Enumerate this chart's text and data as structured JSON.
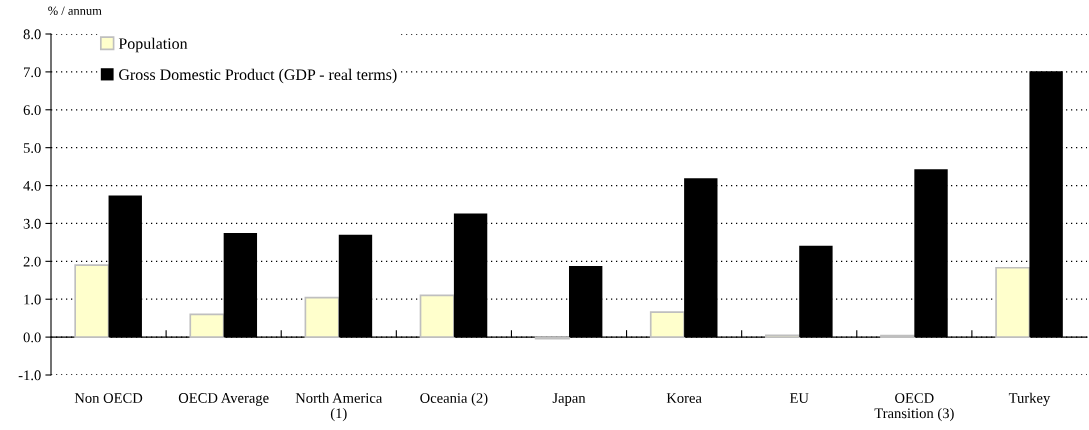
{
  "chart_data": {
    "type": "bar",
    "ylabel": "% / annum",
    "categories": [
      "Non OECD",
      "OECD Average",
      "North America\n(1)",
      "Oceania (2)",
      "Japan",
      "Korea",
      "EU",
      "OECD\nTransition (3)",
      "Turkey"
    ],
    "series": [
      {
        "name": "Population",
        "color": "#ffffcc",
        "values": [
          1.9,
          0.6,
          1.04,
          1.1,
          -0.04,
          0.66,
          0.05,
          0.04,
          1.83
        ]
      },
      {
        "name": "Gross Domestic Product (GDP - real terms)",
        "color": "#000000",
        "values": [
          3.74,
          2.75,
          2.7,
          3.26,
          1.88,
          4.19,
          2.41,
          4.43,
          7.02
        ]
      }
    ],
    "ylim": [
      -1,
      8
    ],
    "yticks": [
      {
        "value": -1,
        "label": "-1.0"
      },
      {
        "value": 0,
        "label": "0.0"
      },
      {
        "value": 1,
        "label": "1.0"
      },
      {
        "value": 2,
        "label": "2.0"
      },
      {
        "value": 3,
        "label": "3.0"
      },
      {
        "value": 4,
        "label": "4.0"
      },
      {
        "value": 5,
        "label": "5.0"
      },
      {
        "value": 6,
        "label": "6.0"
      },
      {
        "value": 7,
        "label": "7.0"
      },
      {
        "value": 8,
        "label": "8.0"
      }
    ],
    "grid": "y",
    "legend": "top left"
  }
}
